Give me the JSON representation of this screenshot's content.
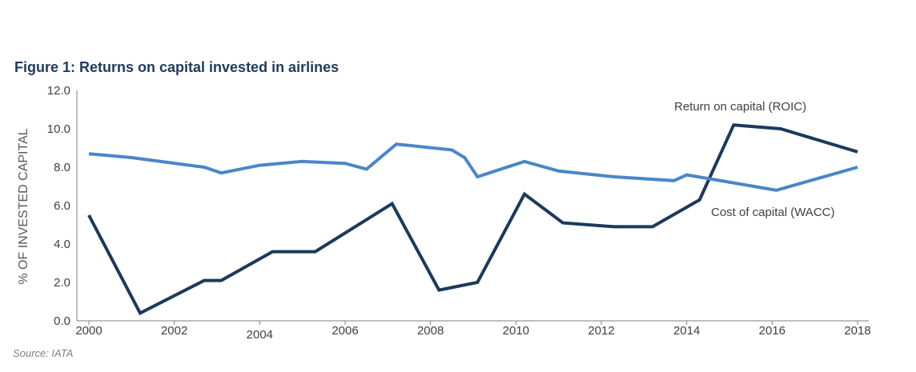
{
  "title": "Figure 1: Returns on capital invested in airlines",
  "source": "Source: IATA",
  "colors": {
    "roic": "#1b3a5c",
    "wacc": "#4a86c8",
    "axis": "#7f7f7f",
    "title": "#1f3b5c"
  },
  "chart_data": {
    "type": "line",
    "title": "Figure 1: Returns on capital invested in airlines",
    "xlabel": "",
    "ylabel": "% OF INVESTED CAPITAL",
    "xlim": [
      2000,
      2018
    ],
    "ylim": [
      0,
      12
    ],
    "x_ticks": [
      "2000",
      "2002",
      "2004",
      "2006",
      "2008",
      "2010",
      "2012",
      "2014",
      "2016",
      "2018"
    ],
    "y_ticks": [
      "0.0",
      "2.0",
      "4.0",
      "6.0",
      "8.0",
      "10.0",
      "12.0"
    ],
    "grid": false,
    "series": [
      {
        "name": "Return on capital (ROIC)",
        "x": [
          2000,
          2001.2,
          2002.7,
          2003.1,
          2004.3,
          2005.3,
          2007.1,
          2008.2,
          2009.1,
          2010.2,
          2011.1,
          2012.3,
          2013.2,
          2014.3,
          2015.1,
          2016.2,
          2018
        ],
        "y": [
          5.5,
          0.4,
          2.1,
          2.1,
          3.6,
          3.6,
          6.1,
          1.6,
          2.0,
          6.6,
          5.1,
          4.9,
          4.9,
          6.3,
          10.2,
          10.0,
          8.8
        ]
      },
      {
        "name": "Cost of capital (WACC)",
        "x": [
          2000,
          2001,
          2002.7,
          2003.1,
          2004,
          2005,
          2006,
          2006.5,
          2007.2,
          2008.5,
          2008.8,
          2009.1,
          2010.2,
          2011,
          2012.3,
          2013.7,
          2014,
          2016.1,
          2018
        ],
        "y": [
          8.7,
          8.5,
          8.0,
          7.7,
          8.1,
          8.3,
          8.2,
          7.9,
          9.2,
          8.9,
          8.5,
          7.5,
          8.3,
          7.8,
          7.5,
          7.3,
          7.6,
          6.8,
          8.0
        ]
      }
    ],
    "annotations": [
      "Return on capital (ROIC)",
      "Cost of capital (WACC)"
    ]
  }
}
